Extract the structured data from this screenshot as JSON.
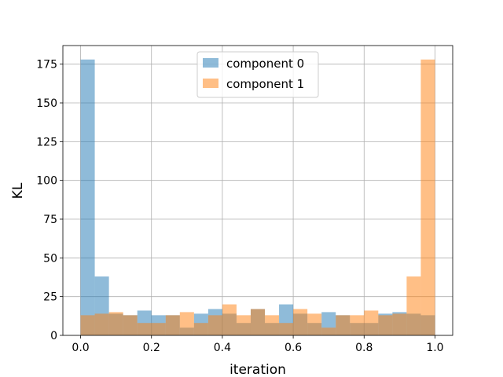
{
  "chart_data": {
    "type": "bar",
    "subtype": "overlapping-histogram",
    "title": "",
    "xlabel": "iteration",
    "ylabel": "KL",
    "xlim": [
      -0.05,
      1.05
    ],
    "ylim": [
      0,
      187
    ],
    "xticks": [
      0.0,
      0.2,
      0.4,
      0.6,
      0.8,
      1.0
    ],
    "xtick_labels": [
      "0.0",
      "0.2",
      "0.4",
      "0.6",
      "0.8",
      "1.0"
    ],
    "yticks": [
      0,
      25,
      50,
      75,
      100,
      125,
      150,
      175
    ],
    "ytick_labels": [
      "0",
      "25",
      "50",
      "75",
      "100",
      "125",
      "150",
      "175"
    ],
    "grid": true,
    "legend_position": "upper-center",
    "bin_edges": [
      0.0,
      0.04,
      0.08,
      0.12,
      0.16,
      0.2,
      0.24,
      0.28,
      0.32,
      0.36,
      0.4,
      0.44,
      0.48,
      0.52,
      0.56,
      0.6,
      0.64,
      0.68,
      0.72,
      0.76,
      0.8,
      0.84,
      0.88,
      0.92,
      0.96,
      1.0
    ],
    "series": [
      {
        "name": "component 0",
        "color": "#1f77b4",
        "alpha": 0.5,
        "values": [
          178,
          38,
          14,
          13,
          16,
          13,
          13,
          5,
          14,
          17,
          14,
          8,
          17,
          8,
          20,
          14,
          8,
          15,
          13,
          8,
          8,
          14,
          15,
          14,
          13
        ]
      },
      {
        "name": "component 1",
        "color": "#ff7f0e",
        "alpha": 0.5,
        "values": [
          13,
          14,
          15,
          13,
          8,
          8,
          13,
          15,
          8,
          13,
          20,
          13,
          17,
          13,
          8,
          17,
          14,
          5,
          13,
          13,
          16,
          13,
          14,
          38,
          178
        ]
      }
    ]
  }
}
